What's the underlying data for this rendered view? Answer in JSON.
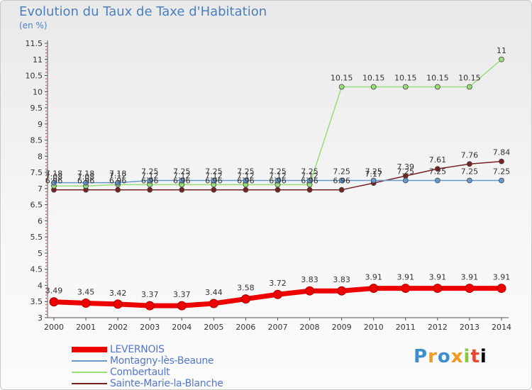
{
  "title": "Evolution du Taux de Taxe d'Habitation",
  "unit": "(en %)",
  "brand": "Proxiti",
  "chart_data": {
    "type": "line",
    "x": [
      "2000",
      "2001",
      "2002",
      "2003",
      "2004",
      "2005",
      "2006",
      "2007",
      "2008",
      "2009",
      "2010",
      "2011",
      "2012",
      "2013",
      "2014"
    ],
    "ylim": [
      3,
      11.5
    ],
    "yticks": [
      "3",
      "3.5",
      "4",
      "4.5",
      "5",
      "5.5",
      "6",
      "6.5",
      "7",
      "7.5",
      "8",
      "8.5",
      "9",
      "9.5",
      "10",
      "10.5",
      "11",
      "11.5"
    ],
    "grid": false,
    "legend": "bottom-left",
    "series": [
      {
        "name": "LEVERNOIS",
        "color": "#ee0000",
        "values": [
          3.49,
          3.45,
          3.42,
          3.37,
          3.37,
          3.44,
          3.58,
          3.72,
          3.83,
          3.83,
          3.91,
          3.91,
          3.91,
          3.91,
          3.91
        ],
        "labels": [
          "3.49",
          "3.45",
          "3.42",
          "3.37",
          "3.37",
          "3.44",
          "3.58",
          "3.72",
          "3.83",
          "3.83",
          "3.91",
          "3.91",
          "3.91",
          "3.91",
          "3.91"
        ]
      },
      {
        "name": "Montagny-lès-Beaune",
        "color": "#6699cc",
        "values": [
          7.18,
          7.18,
          7.18,
          7.25,
          7.25,
          7.25,
          7.25,
          7.25,
          7.25,
          7.25,
          7.25,
          7.25,
          7.25,
          7.25,
          7.25
        ],
        "labels": [
          "7.18",
          "7.18",
          "7.18",
          "7.25",
          "7.25",
          "7.25",
          "7.25",
          "7.25",
          "7.25",
          "7.25",
          "7.25",
          "7.25",
          "7.25",
          "7.25",
          "7.25"
        ]
      },
      {
        "name": "Combertault",
        "color": "#99dd77",
        "values": [
          7.08,
          7.08,
          7.12,
          7.12,
          7.12,
          7.12,
          7.12,
          7.12,
          7.12,
          10.15,
          10.15,
          10.15,
          10.15,
          10.15,
          11
        ],
        "labels": [
          "7.08",
          "7.08",
          "7.12",
          "7.12",
          "7.12",
          "7.12",
          "7.12",
          "7.12",
          "7.12",
          "10.15",
          "10.15",
          "10.15",
          "10.15",
          "10.15",
          "11"
        ]
      },
      {
        "name": "Sainte-Marie-la-Blanche",
        "color": "#772222",
        "values": [
          6.96,
          6.96,
          6.96,
          6.96,
          6.96,
          6.96,
          6.96,
          6.96,
          6.96,
          6.96,
          7.17,
          7.39,
          7.61,
          7.76,
          7.84
        ],
        "labels": [
          "6.96",
          "6.96",
          "6.96",
          "6.96",
          "6.96",
          "6.96",
          "6.96",
          "6.96",
          "6.96",
          "6.96",
          "7.17",
          "7.39",
          "7.61",
          "7.76",
          "7.84"
        ]
      }
    ]
  }
}
